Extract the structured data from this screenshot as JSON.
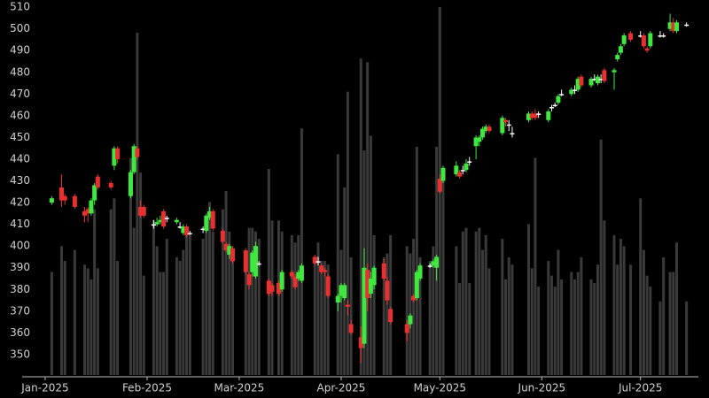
{
  "chart_data": {
    "type": "candlestick",
    "x": [
      2,
      5,
      6,
      9,
      12,
      13,
      14,
      15,
      16,
      20,
      21,
      22,
      26,
      27,
      28,
      29,
      30,
      33,
      34,
      35,
      36,
      37,
      40,
      41,
      42,
      43,
      44,
      48,
      49,
      50,
      51,
      54,
      55,
      56,
      57,
      61,
      62,
      63,
      64,
      65,
      68,
      69,
      71,
      72,
      75,
      76,
      77,
      78,
      82,
      83,
      84,
      85,
      86,
      89,
      90,
      91,
      92,
      93,
      96,
      97,
      98,
      99,
      100,
      103,
      104,
      105,
      110,
      111,
      112,
      113,
      114,
      117,
      118,
      119,
      120,
      121,
      125,
      126,
      127,
      128,
      129,
      131,
      132,
      133,
      134,
      135,
      139,
      140,
      141,
      142,
      147,
      148,
      149,
      150,
      153,
      154,
      155,
      156,
      157,
      160,
      161,
      162,
      163,
      166,
      167,
      168,
      169,
      170,
      173,
      174,
      175,
      176,
      178,
      181,
      182,
      183,
      184,
      187,
      188,
      190,
      191,
      192,
      195
    ],
    "open": [
      420,
      427,
      423,
      423,
      416,
      417,
      415,
      421,
      432,
      429,
      437,
      445,
      423,
      434,
      445,
      418,
      418,
      410,
      410,
      411,
      416,
      413,
      411,
      409,
      406,
      409,
      406,
      408,
      407,
      413,
      416,
      407,
      401,
      396,
      399,
      398,
      387,
      388,
      386,
      392,
      384,
      382,
      383,
      380,
      388,
      386,
      385,
      384,
      395,
      393,
      391,
      389,
      386,
      374,
      377,
      376,
      373,
      364,
      358,
      355,
      389,
      378,
      382,
      392,
      384,
      371,
      364,
      364,
      377,
      376,
      385,
      391,
      391,
      390,
      431,
      430,
      433,
      434,
      435,
      435,
      439,
      446,
      448,
      450,
      453,
      455,
      452,
      458,
      456,
      452,
      458,
      461,
      461,
      461,
      458,
      464,
      465,
      466,
      470,
      470,
      472,
      472,
      478,
      474,
      477,
      475,
      477,
      481,
      480,
      486,
      489,
      493,
      498,
      497,
      497,
      491,
      492,
      497,
      497,
      500,
      503,
      499,
      502
    ],
    "high": [
      423,
      433,
      424,
      424,
      418,
      418,
      422,
      429,
      433,
      430,
      446,
      446,
      435,
      447,
      446,
      421,
      419,
      412,
      413,
      414,
      417,
      414,
      413,
      411,
      410,
      410,
      407,
      409,
      415,
      418,
      417,
      408,
      402,
      401,
      400,
      399,
      388,
      398,
      402,
      393,
      385,
      383,
      384,
      389,
      389,
      387,
      389,
      392,
      396,
      395,
      392,
      390,
      387,
      378,
      383,
      383,
      375,
      366,
      363,
      399,
      392,
      388,
      391,
      394,
      386,
      372,
      366,
      369,
      378,
      389,
      392,
      392,
      394,
      396,
      433,
      437,
      439,
      435,
      437,
      440,
      441,
      451,
      451,
      455,
      456,
      456,
      460,
      459,
      458,
      455,
      462,
      462,
      463,
      462,
      463,
      465,
      466,
      470,
      472,
      473,
      474,
      478,
      479,
      478,
      479,
      479,
      479,
      482,
      482,
      489,
      493,
      498,
      499,
      499,
      498,
      492,
      499,
      499,
      498,
      507,
      505,
      504,
      503
    ],
    "low": [
      419,
      418,
      419,
      417,
      411,
      411,
      414,
      419,
      426,
      426,
      435,
      438,
      422,
      433,
      440,
      413,
      413,
      408,
      409,
      410,
      408,
      411,
      410,
      408,
      405,
      404,
      405,
      406,
      406,
      412,
      407,
      401,
      397,
      394,
      392,
      387,
      380,
      386,
      385,
      391,
      377,
      377,
      377,
      379,
      385,
      380,
      384,
      383,
      391,
      391,
      387,
      386,
      376,
      370,
      374,
      375,
      368,
      359,
      346,
      353,
      370,
      376,
      380,
      384,
      373,
      364,
      356,
      362,
      374,
      375,
      384,
      390,
      390,
      384,
      424,
      429,
      432,
      431,
      433,
      434,
      437,
      440,
      446,
      449,
      452,
      452,
      451,
      455,
      453,
      450,
      457,
      458,
      458,
      459,
      457,
      462,
      464,
      465,
      469,
      469,
      470,
      471,
      473,
      473,
      476,
      474,
      475,
      475,
      472,
      485,
      488,
      492,
      494,
      496,
      491,
      489,
      491,
      496,
      496,
      499,
      498,
      498,
      501
    ],
    "close": [
      422,
      421,
      421,
      418,
      414,
      415,
      421,
      428,
      427,
      427,
      445,
      440,
      434,
      446,
      441,
      414,
      414,
      410,
      411,
      412,
      409,
      413,
      412,
      409,
      409,
      405,
      406,
      408,
      414,
      416,
      408,
      402,
      398,
      400,
      393,
      388,
      382,
      397,
      400,
      392,
      378,
      379,
      378,
      388,
      386,
      381,
      388,
      391,
      392,
      393,
      388,
      388,
      377,
      377,
      382,
      382,
      372,
      360,
      353,
      390,
      376,
      385,
      390,
      385,
      375,
      365,
      360,
      368,
      375,
      388,
      391,
      391,
      393,
      395,
      425,
      436,
      437,
      432,
      435,
      438,
      439,
      450,
      450,
      454,
      455,
      453,
      459,
      457,
      456,
      452,
      461,
      459,
      459,
      461,
      462,
      464,
      465,
      469,
      470,
      472,
      472,
      477,
      474,
      477,
      477,
      478,
      477,
      476,
      481,
      488,
      492,
      497,
      495,
      497,
      492,
      490,
      498,
      497,
      497,
      503,
      499,
      503,
      502
    ],
    "volume": [
      28,
      35,
      31,
      34,
      30,
      29,
      26,
      45,
      29,
      45,
      48,
      31,
      59,
      40,
      93,
      55,
      27,
      42,
      35,
      28,
      28,
      37,
      32,
      31,
      34,
      39,
      38,
      37,
      40,
      47,
      39,
      45,
      50,
      39,
      32,
      30,
      40,
      40,
      39,
      37,
      56,
      42,
      42,
      39,
      38,
      36,
      38,
      67,
      32,
      36,
      31,
      31,
      30,
      60,
      34,
      51,
      77,
      32,
      86,
      61,
      85,
      65,
      38,
      32,
      33,
      38,
      35,
      33,
      37,
      62,
      32,
      31,
      35,
      62,
      100,
      55,
      35,
      25,
      39,
      40,
      25,
      39,
      40,
      34,
      38,
      29,
      37,
      26,
      32,
      30,
      41,
      29,
      59,
      24,
      31,
      27,
      24,
      34,
      26,
      28,
      26,
      28,
      32,
      26,
      25,
      30,
      64,
      42,
      38,
      30,
      37,
      35,
      30,
      48,
      34,
      27,
      24,
      20,
      32,
      28,
      28,
      36,
      20
    ],
    "up_color": "#3ee83e",
    "down_color": "#e83030",
    "flat_color": "#ffffff",
    "volume_color": "#3a3a3a",
    "xlim": [
      -4.3,
      198.6
    ],
    "xticks": [
      {
        "value": 0,
        "label": "Jan-2025"
      },
      {
        "value": 31,
        "label": "Feb-2025"
      },
      {
        "value": 59,
        "label": "Mar-2025"
      },
      {
        "value": 90,
        "label": "Apr-2025"
      },
      {
        "value": 120,
        "label": "May-2025"
      },
      {
        "value": 151,
        "label": "Jun-2025"
      },
      {
        "value": 181,
        "label": "Jul-2025"
      }
    ],
    "ylim": [
      340.6,
      513.3
    ],
    "yticks": [
      350,
      360,
      370,
      380,
      390,
      400,
      410,
      420,
      430,
      440,
      450,
      460,
      470,
      480,
      490,
      500,
      510
    ],
    "volume_lim": [
      0,
      101.9
    ]
  }
}
